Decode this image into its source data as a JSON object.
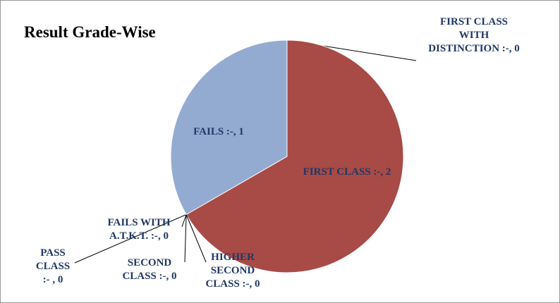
{
  "chart_data": {
    "type": "pie",
    "title": "Result  Grade-Wise",
    "values": [
      0,
      2,
      0,
      0,
      0,
      0,
      1
    ],
    "value_labels": [
      "FIRST CLASS WITH DISTINCTION :-, 0",
      "FIRST CLASS :-, 2",
      "HIGHER SECOND CLASS :-, 0",
      "SECOND CLASS :-, 0",
      "PASS CLASS :- , 0",
      "FAILS  WITH A.T.K.T. :-, 0",
      "FAILS :-, 1"
    ],
    "colors": [
      "#4f81bd",
      "#a84a46",
      "#9bbb59",
      "#8064a2",
      "#4bacc6",
      "#f79646",
      "#94abd1"
    ]
  }
}
